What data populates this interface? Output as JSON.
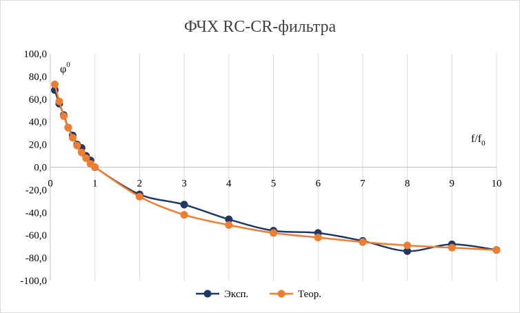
{
  "chart_data": {
    "type": "scatter",
    "title": "ФЧХ RC-CR-фильтра",
    "ylabel": "φ",
    "ylabel_sup": "0",
    "xlabel": "f/f",
    "xlabel_sub": "0",
    "xlim": [
      0,
      10
    ],
    "ylim": [
      -100,
      100
    ],
    "x_ticks": [
      "0",
      "1",
      "2",
      "3",
      "4",
      "5",
      "6",
      "7",
      "8",
      "9",
      "10"
    ],
    "y_ticks": [
      "100,0",
      "80,0",
      "60,0",
      "40,0",
      "20,0",
      "0,0",
      "-20,0",
      "-40,0",
      "-60,0",
      "-80,0",
      "-100,0"
    ],
    "y_tick_values": [
      100,
      80,
      60,
      40,
      20,
      0,
      -20,
      -40,
      -60,
      -80,
      -100
    ],
    "grid": "vertical",
    "legend_position": "bottom",
    "series": [
      {
        "name": "Эксп.",
        "color": "#203864",
        "x": [
          0.1,
          0.2,
          0.3,
          0.4,
          0.5,
          0.6,
          0.7,
          0.8,
          0.9,
          1,
          2,
          3,
          4,
          5,
          6,
          7,
          8,
          9,
          10
        ],
        "y": [
          68,
          56,
          46,
          35,
          28,
          20,
          17,
          10,
          6,
          0,
          -24,
          -33,
          -46,
          -56,
          -58,
          -65,
          -74,
          -68,
          -73
        ]
      },
      {
        "name": "Теор.",
        "color": "#ed7d31",
        "x": [
          0.1,
          0.2,
          0.3,
          0.4,
          0.5,
          0.6,
          0.7,
          0.8,
          0.9,
          1,
          2,
          3,
          4,
          5,
          6,
          7,
          8,
          9,
          10
        ],
        "y": [
          73,
          58,
          45,
          35,
          26,
          19,
          13,
          8,
          3,
          0,
          -26,
          -42,
          -51,
          -58,
          -62,
          -66,
          -69,
          -71,
          -73
        ]
      }
    ]
  }
}
